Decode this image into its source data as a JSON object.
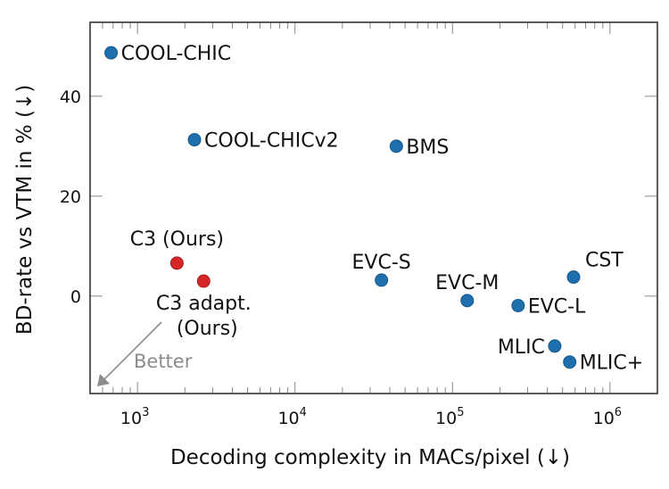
{
  "chart_data": {
    "type": "scatter",
    "title": "",
    "xlabel": "Decoding complexity in MACs/pixel (↓)",
    "ylabel": "BD-rate vs VTM in % (↓)",
    "xscale": "log",
    "xlim": [
      500,
      2000000
    ],
    "ylim": [
      -19.5,
      54.8
    ],
    "grid": false,
    "legend": "none",
    "x_ticks": [
      {
        "value": 1000,
        "base": "10",
        "exp": "3"
      },
      {
        "value": 10000,
        "base": "10",
        "exp": "4"
      },
      {
        "value": 100000,
        "base": "10",
        "exp": "5"
      },
      {
        "value": 1000000,
        "base": "10",
        "exp": "6"
      }
    ],
    "y_ticks": [
      {
        "value": 0,
        "label": "0"
      },
      {
        "value": 20,
        "label": "20"
      },
      {
        "value": 40,
        "label": "40"
      }
    ],
    "colors": {
      "baseline": "#1f6fad",
      "ours": "#d62728",
      "better_arrow": "#8c8c8c"
    },
    "points": [
      {
        "name": "COOL-CHIC",
        "x": 680,
        "y": 48.7,
        "group": "baseline",
        "label_pos": "right"
      },
      {
        "name": "COOL-CHICv2",
        "x": 2300,
        "y": 31.3,
        "group": "baseline",
        "label_pos": "right"
      },
      {
        "name": "BMS",
        "x": 44000,
        "y": 30.0,
        "group": "baseline",
        "label_pos": "right"
      },
      {
        "name": "C3 (Ours)",
        "x": 1780,
        "y": 6.6,
        "group": "ours",
        "label_pos": "above"
      },
      {
        "name": "C3 adapt. (Ours)",
        "lines": [
          "C3 adapt.",
          "(Ours)"
        ],
        "x": 2630,
        "y": 3.0,
        "group": "ours",
        "label_pos": "below"
      },
      {
        "name": "EVC-S",
        "x": 35400,
        "y": 3.2,
        "group": "baseline",
        "label_pos": "above"
      },
      {
        "name": "EVC-M",
        "x": 124000,
        "y": -0.9,
        "group": "baseline",
        "label_pos": "above"
      },
      {
        "name": "EVC-L",
        "x": 261000,
        "y": -1.9,
        "group": "baseline",
        "label_pos": "right"
      },
      {
        "name": "CST",
        "x": 587000,
        "y": 3.8,
        "group": "baseline",
        "label_pos": "above-right"
      },
      {
        "name": "MLIC",
        "x": 446000,
        "y": -10.0,
        "group": "baseline",
        "label_pos": "left"
      },
      {
        "name": "MLIC+",
        "x": 555000,
        "y": -13.2,
        "group": "baseline",
        "label_pos": "right"
      }
    ],
    "annotations": [
      {
        "text": "Better",
        "arrow": "toward lower-left",
        "color": "#8c8c8c"
      }
    ]
  }
}
